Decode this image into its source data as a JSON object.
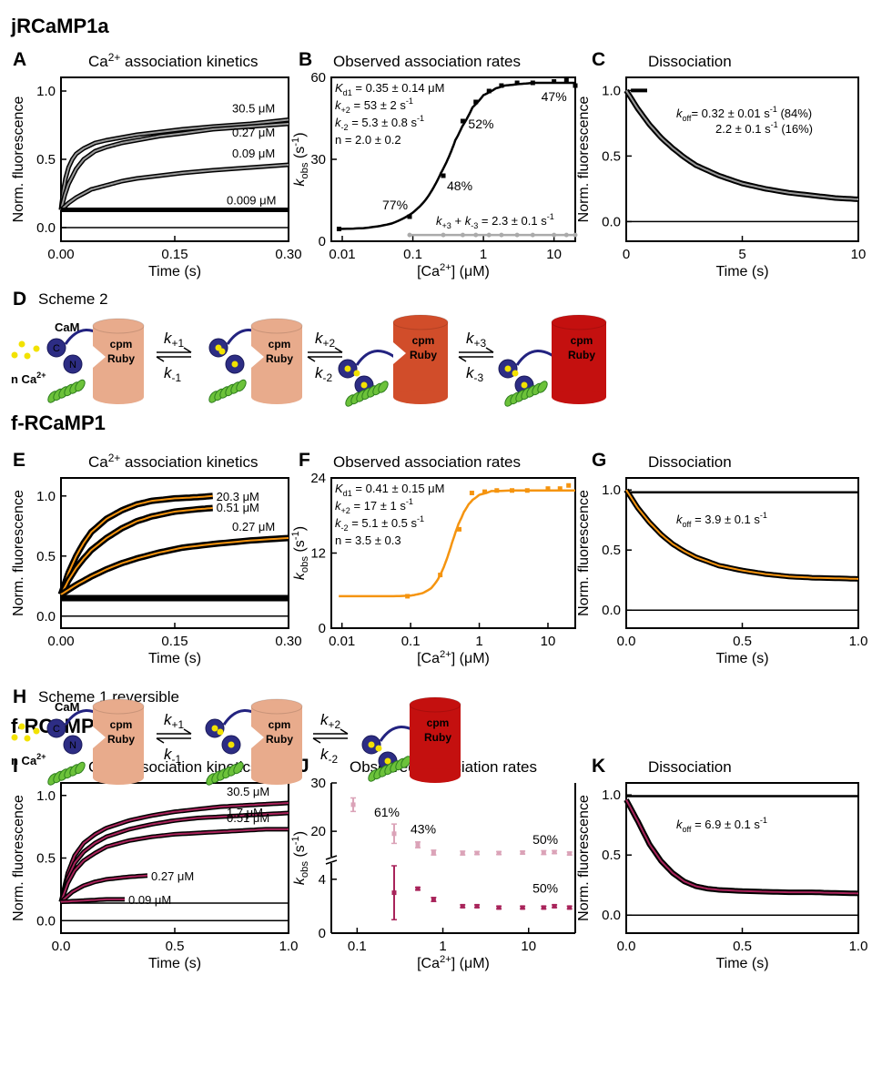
{
  "sections": {
    "s1": {
      "title": "jRCaMP1a",
      "color": "#000000"
    },
    "s2": {
      "title": "f-RCaMP1",
      "color": "#f5940f"
    },
    "s3": {
      "title": "f-RCaMP2",
      "color": "#a8235a"
    }
  },
  "schemes": {
    "D": {
      "letter": "D",
      "title": "Scheme 2",
      "cam": "CaM",
      "ca": "n Ca",
      "ca_sup": "2+",
      "lobe_c": "C",
      "lobe_n": "N",
      "cpm1": "cpm",
      "cpm2": "Ruby",
      "rates": [
        {
          "kf": "k",
          "kf_sub": "+1",
          "kr": "k",
          "kr_sub": "-1"
        },
        {
          "kf": "k",
          "kf_sub": "+2",
          "kr": "k",
          "kr_sub": "-2"
        },
        {
          "kf": "k",
          "kf_sub": "+3",
          "kr": "k",
          "kr_sub": "-3"
        }
      ]
    },
    "H": {
      "letter": "H",
      "title": "Scheme 1 reversible",
      "cam": "CaM",
      "ca": "n Ca",
      "ca_sup": "2+",
      "lobe_c": "C",
      "lobe_n": "N",
      "cpm1": "cpm",
      "cpm2": "Ruby",
      "rates": [
        {
          "kf": "k",
          "kf_sub": "+1",
          "kr": "k",
          "kr_sub": "-1"
        },
        {
          "kf": "k",
          "kf_sub": "+2",
          "kr": "k",
          "kr_sub": "-2"
        }
      ]
    }
  },
  "chart_data": [
    {
      "panel": "A",
      "type": "line",
      "title": "Ca",
      "title_sup": "2+",
      "title_rest": " association kinetics",
      "xlabel": "Time (s)",
      "ylabel": "Norm. fluorescence",
      "xlim": [
        0,
        0.3
      ],
      "ylim": [
        -0.1,
        1.1
      ],
      "xticks": [
        "0.00",
        "0.15",
        "0.30"
      ],
      "yticks": [
        "0.0",
        "0.5",
        "1.0"
      ],
      "fit_color": "#999999",
      "series": [
        {
          "name": "30.5 μM",
          "x": [
            0,
            0.003,
            0.006,
            0.01,
            0.015,
            0.02,
            0.03,
            0.045,
            0.06,
            0.08,
            0.1,
            0.13,
            0.16,
            0.2,
            0.25,
            0.3
          ],
          "y": [
            0.13,
            0.27,
            0.36,
            0.44,
            0.5,
            0.54,
            0.58,
            0.62,
            0.64,
            0.66,
            0.68,
            0.7,
            0.72,
            0.74,
            0.76,
            0.79
          ]
        },
        {
          "name": "0.27 μM",
          "x": [
            0,
            0.005,
            0.01,
            0.02,
            0.03,
            0.045,
            0.06,
            0.08,
            0.1,
            0.13,
            0.16,
            0.2,
            0.25,
            0.3
          ],
          "y": [
            0.13,
            0.24,
            0.32,
            0.43,
            0.5,
            0.56,
            0.59,
            0.62,
            0.64,
            0.67,
            0.69,
            0.72,
            0.74,
            0.76
          ]
        },
        {
          "name": "0.09 μM",
          "x": [
            0,
            0.01,
            0.02,
            0.04,
            0.06,
            0.08,
            0.1,
            0.13,
            0.16,
            0.2,
            0.25,
            0.3
          ],
          "y": [
            0.13,
            0.18,
            0.22,
            0.28,
            0.31,
            0.34,
            0.36,
            0.38,
            0.4,
            0.42,
            0.44,
            0.46
          ]
        },
        {
          "name": "0.009 μM",
          "x": [
            0,
            0.3
          ],
          "y": [
            0.13,
            0.13
          ]
        }
      ],
      "baseline": 0.0
    },
    {
      "panel": "B",
      "type": "scatter",
      "title": "Observed association rates",
      "xlabel": "[Ca",
      "xlabel_sup": "2+",
      "xlabel_rest": "] (μM)",
      "ylabel": "k",
      "ylabel_sub": "obs",
      "ylabel_rest": " (s",
      "ylabel_sup": "-1",
      "ylabel_end": ")",
      "xscale": "log",
      "xlim": [
        0.007,
        20
      ],
      "ylim": [
        0,
        60
      ],
      "xticks": [
        "0.01",
        "0.1",
        "1",
        "10"
      ],
      "yticks": [
        "0",
        "30",
        "60"
      ],
      "points_x": [
        0.009,
        0.09,
        0.27,
        0.51,
        0.78,
        1.2,
        1.8,
        3.0,
        5.0,
        10,
        15,
        20
      ],
      "points_y": [
        4.5,
        9,
        24,
        44,
        51,
        55,
        57,
        58,
        58,
        58.5,
        59,
        57
      ],
      "fit_x": [
        0.009,
        0.02,
        0.05,
        0.1,
        0.15,
        0.2,
        0.25,
        0.3,
        0.4,
        0.5,
        0.7,
        1,
        1.5,
        2,
        3,
        5,
        10,
        20
      ],
      "fit_y": [
        4.5,
        4.8,
        6.5,
        10.5,
        15,
        20,
        25,
        29,
        37,
        42,
        49,
        53.5,
        56,
        57,
        57.5,
        58,
        58,
        58
      ],
      "slow_x": [
        0.09,
        0.27,
        0.51,
        0.78,
        1.2,
        1.8,
        3.0,
        5.0,
        10,
        15,
        20
      ],
      "slow_y": [
        2.3,
        2.3,
        2.3,
        2.3,
        2.3,
        2.3,
        2.3,
        2.3,
        2.3,
        2.3,
        2.3
      ],
      "pct_labels": [
        "77%",
        "48%",
        "52%",
        "47%"
      ],
      "params": [
        "K",
        "d1",
        " = 0.35 ± 0.14 μM",
        "k",
        "+2",
        " = 53 ± 2 s",
        "-1",
        "k",
        "-2",
        " = 5.3 ± 0.8 s",
        "-1",
        "n = 2.0 ± 0.2"
      ],
      "slow_label": [
        "k",
        "+3",
        " + ",
        "k",
        "-3",
        " = 2.3 ± 0.1 s",
        "-1"
      ],
      "fit_color": "#000000",
      "slow_color": "#aaaaaa"
    },
    {
      "panel": "C",
      "type": "line",
      "title": "Dissociation",
      "xlabel": "Time (s)",
      "ylabel": "Norm. fluorescence",
      "xlim": [
        0,
        10
      ],
      "ylim": [
        -0.15,
        1.1
      ],
      "xticks": [
        "0",
        "5",
        "10"
      ],
      "yticks": [
        "0.0",
        "0.5",
        "1.0"
      ],
      "x": [
        0,
        0.5,
        1,
        1.5,
        2,
        2.5,
        3,
        3.5,
        4,
        5,
        6,
        7,
        8,
        9,
        10
      ],
      "y": [
        1.0,
        0.86,
        0.74,
        0.64,
        0.56,
        0.49,
        0.43,
        0.39,
        0.35,
        0.29,
        0.25,
        0.22,
        0.2,
        0.18,
        0.17
      ],
      "ref_x": [
        0.2,
        0.9
      ],
      "ref_y": [
        1.0,
        1.0
      ],
      "koff": [
        "k",
        "off",
        "= 0.32 ± 0.01 s",
        "-1",
        " (84%)",
        "2.2 ± 0.1 s",
        "-1",
        "   (16%)"
      ],
      "fit_color": "#999999"
    },
    {
      "panel": "E",
      "type": "line",
      "title": "Ca",
      "title_sup": "2+",
      "title_rest": " association kinetics",
      "xlabel": "Time (s)",
      "ylabel": "Norm. fluorescence",
      "xlim": [
        0,
        0.3
      ],
      "ylim": [
        -0.1,
        1.15
      ],
      "xticks": [
        "0.00",
        "0.15",
        "0.30"
      ],
      "yticks": [
        "0.0",
        "0.5",
        "1.0"
      ],
      "fit_color": "#f5940f",
      "series": [
        {
          "name": "20.3 μM",
          "x": [
            0,
            0.01,
            0.02,
            0.03,
            0.04,
            0.06,
            0.08,
            0.1,
            0.12,
            0.15,
            0.18,
            0.2
          ],
          "y": [
            0.18,
            0.36,
            0.5,
            0.61,
            0.7,
            0.81,
            0.88,
            0.93,
            0.96,
            0.98,
            0.99,
            1.0
          ]
        },
        {
          "name": "0.51 μM",
          "x": [
            0,
            0.01,
            0.02,
            0.03,
            0.04,
            0.06,
            0.08,
            0.1,
            0.12,
            0.15,
            0.18,
            0.2
          ],
          "y": [
            0.18,
            0.3,
            0.4,
            0.48,
            0.55,
            0.65,
            0.73,
            0.79,
            0.83,
            0.87,
            0.89,
            0.9
          ]
        },
        {
          "name": "0.27 μM",
          "x": [
            0,
            0.02,
            0.04,
            0.06,
            0.08,
            0.1,
            0.13,
            0.16,
            0.2,
            0.25,
            0.3
          ],
          "y": [
            0.18,
            0.26,
            0.33,
            0.39,
            0.44,
            0.48,
            0.53,
            0.57,
            0.6,
            0.63,
            0.65
          ]
        },
        {
          "name": "",
          "x": [
            0,
            0.3
          ],
          "y": [
            0.15,
            0.15
          ]
        }
      ],
      "baseline": 0.0
    },
    {
      "panel": "F",
      "type": "scatter",
      "title": "Observed association rates",
      "xlabel": "[Ca",
      "xlabel_sup": "2+",
      "xlabel_rest": "] (μM)",
      "ylabel": "k",
      "ylabel_sub": "obs",
      "ylabel_rest": " (s",
      "ylabel_sup": "-1",
      "ylabel_end": ")",
      "xscale": "log",
      "xlim": [
        0.007,
        25
      ],
      "ylim": [
        0,
        24
      ],
      "xticks": [
        "0.01",
        "0.1",
        "1",
        "10"
      ],
      "yticks": [
        "0",
        "12",
        "24"
      ],
      "points_x": [
        0.09,
        0.27,
        0.51,
        0.78,
        1.2,
        1.8,
        3.0,
        5.0,
        10,
        15,
        20
      ],
      "points_y": [
        5.1,
        8.5,
        15.8,
        21.6,
        21.8,
        22,
        22,
        22,
        22.3,
        22.3,
        22.8
      ],
      "fit_x": [
        0.009,
        0.05,
        0.1,
        0.15,
        0.2,
        0.25,
        0.3,
        0.35,
        0.4,
        0.45,
        0.5,
        0.6,
        0.7,
        0.8,
        1,
        1.5,
        3,
        10,
        25
      ],
      "fit_y": [
        5.1,
        5.1,
        5.2,
        5.6,
        6.4,
        7.8,
        9.6,
        11.6,
        13.6,
        15.3,
        16.7,
        18.6,
        19.8,
        20.5,
        21.3,
        21.9,
        22,
        22,
        22
      ],
      "params": [
        "K",
        "d1",
        " = 0.41 ± 0.15 μM",
        "k",
        "+2",
        " = 17 ± 1 s",
        "-1",
        "k",
        "-2",
        " = 5.1 ± 0.5 s",
        "-1",
        "n = 3.5 ± 0.3"
      ],
      "fit_color": "#f5940f"
    },
    {
      "panel": "G",
      "type": "line",
      "title": "Dissociation",
      "xlabel": "Time (s)",
      "ylabel": "Norm. fluorescence",
      "xlim": [
        0,
        1.0
      ],
      "ylim": [
        -0.15,
        1.1
      ],
      "xticks": [
        "0.0",
        "0.5",
        "1.0"
      ],
      "yticks": [
        "0.0",
        "0.5",
        "1.0"
      ],
      "x": [
        0,
        0.05,
        0.1,
        0.15,
        0.2,
        0.25,
        0.3,
        0.4,
        0.5,
        0.6,
        0.7,
        0.8,
        0.9,
        1.0
      ],
      "y": [
        1.0,
        0.85,
        0.73,
        0.63,
        0.55,
        0.49,
        0.44,
        0.37,
        0.33,
        0.3,
        0.28,
        0.27,
        0.265,
        0.26
      ],
      "ref_x": [
        0,
        1.0
      ],
      "ref_y": [
        0.98,
        0.98
      ],
      "koff": [
        "k",
        "off",
        " = 3.9 ± 0.1 s",
        "-1"
      ],
      "fit_color": "#f5940f"
    },
    {
      "panel": "I",
      "type": "line",
      "title": "Ca",
      "title_sup": "2+",
      "title_rest": " association kinetics",
      "xlabel": "Time (s)",
      "ylabel": "Norm. fluorescence",
      "xlim": [
        0,
        1.0
      ],
      "ylim": [
        -0.1,
        1.1
      ],
      "xticks": [
        "0.0",
        "0.5",
        "1.0"
      ],
      "yticks": [
        "0.0",
        "0.5",
        "1.0"
      ],
      "fit_color": "#a8235a",
      "series": [
        {
          "name": "30.5 μM",
          "x": [
            0,
            0.03,
            0.06,
            0.1,
            0.15,
            0.2,
            0.3,
            0.4,
            0.5,
            0.6,
            0.7,
            0.8,
            0.9,
            1.0
          ],
          "y": [
            0.15,
            0.38,
            0.52,
            0.62,
            0.69,
            0.74,
            0.8,
            0.84,
            0.87,
            0.89,
            0.91,
            0.92,
            0.93,
            0.94
          ]
        },
        {
          "name": "1.7 μM",
          "x": [
            0,
            0.03,
            0.06,
            0.1,
            0.15,
            0.2,
            0.3,
            0.4,
            0.5,
            0.6,
            0.7,
            0.8,
            0.9,
            1.0
          ],
          "y": [
            0.15,
            0.34,
            0.46,
            0.55,
            0.62,
            0.67,
            0.73,
            0.77,
            0.8,
            0.82,
            0.83,
            0.84,
            0.85,
            0.86
          ]
        },
        {
          "name": "0.51 μM",
          "x": [
            0,
            0.03,
            0.06,
            0.1,
            0.15,
            0.2,
            0.3,
            0.4,
            0.5,
            0.6,
            0.7,
            0.8,
            0.9,
            1.0
          ],
          "y": [
            0.15,
            0.3,
            0.4,
            0.48,
            0.54,
            0.59,
            0.64,
            0.67,
            0.69,
            0.7,
            0.71,
            0.72,
            0.73,
            0.73
          ]
        },
        {
          "name": "0.27 μM",
          "x": [
            0,
            0.05,
            0.1,
            0.15,
            0.2,
            0.25,
            0.3,
            0.38
          ],
          "y": [
            0.15,
            0.23,
            0.28,
            0.31,
            0.33,
            0.34,
            0.35,
            0.36
          ]
        },
        {
          "name": "0.09 μM",
          "x": [
            0,
            0.1,
            0.2,
            0.28
          ],
          "y": [
            0.15,
            0.16,
            0.17,
            0.17
          ]
        }
      ],
      "ref_x": [
        0,
        1.0
      ],
      "ref_y": [
        0.14,
        0.14
      ],
      "baseline": 0.0
    },
    {
      "panel": "J",
      "type": "scatter",
      "title": "Observed association rates",
      "xlabel": "[Ca",
      "xlabel_sup": "2+",
      "xlabel_rest": "] (μM)",
      "ylabel": "k",
      "ylabel_sub": "obs",
      "ylabel_rest": " (s",
      "ylabel_sup": "-1",
      "ylabel_end": ")",
      "xscale": "log",
      "xlim": [
        0.05,
        35
      ],
      "xticks": [
        "0.1",
        "1",
        "10"
      ],
      "yticks": [
        "0",
        "4",
        "20",
        "30"
      ],
      "fast_x": [
        0.09,
        0.27,
        0.51,
        0.78,
        1.7,
        2.5,
        4.5,
        8.5,
        15,
        20,
        30
      ],
      "fast_y": [
        25.5,
        19.5,
        17.2,
        15.6,
        15.5,
        15.5,
        15.5,
        15.6,
        15.6,
        15.7,
        15.4
      ],
      "fast_err": [
        1.4,
        2.0,
        0.6,
        0.5,
        0.4,
        0.3,
        0.3,
        0.3,
        0.4,
        0.3,
        0.3
      ],
      "slow_x": [
        0.27,
        0.51,
        0.78,
        1.7,
        2.5,
        4.5,
        8.5,
        15,
        20,
        30
      ],
      "slow_y": [
        3.0,
        3.3,
        2.5,
        2.0,
        2.0,
        1.9,
        1.9,
        1.9,
        2.0,
        1.9
      ],
      "slow_err": [
        2.0,
        0.1,
        0.15,
        0.1,
        0.1,
        0.1,
        0.1,
        0.1,
        0.1,
        0.1
      ],
      "pct_labels": [
        "61%",
        "43%",
        "50%",
        "50%"
      ],
      "fast_color": "#dba3b8",
      "slow_color": "#a8235a"
    },
    {
      "panel": "K",
      "type": "line",
      "title": "Dissociation",
      "xlabel": "Time (s)",
      "ylabel": "Norm. fluorescence",
      "xlim": [
        0,
        1.0
      ],
      "ylim": [
        -0.15,
        1.1
      ],
      "xticks": [
        "0.0",
        "0.5",
        "1.0"
      ],
      "yticks": [
        "0.0",
        "0.5",
        "1.0"
      ],
      "x": [
        0,
        0.05,
        0.1,
        0.15,
        0.2,
        0.25,
        0.3,
        0.35,
        0.4,
        0.5,
        0.6,
        0.7,
        0.8,
        0.9,
        1.0
      ],
      "y": [
        0.96,
        0.78,
        0.59,
        0.45,
        0.35,
        0.28,
        0.24,
        0.22,
        0.21,
        0.2,
        0.195,
        0.19,
        0.19,
        0.185,
        0.18
      ],
      "ref_x": [
        0,
        1.0
      ],
      "ref_y": [
        0.99,
        0.99
      ],
      "koff": [
        "k",
        "off",
        " = 6.9 ± 0.1 s",
        "-1"
      ],
      "fit_color": "#a8235a"
    }
  ]
}
